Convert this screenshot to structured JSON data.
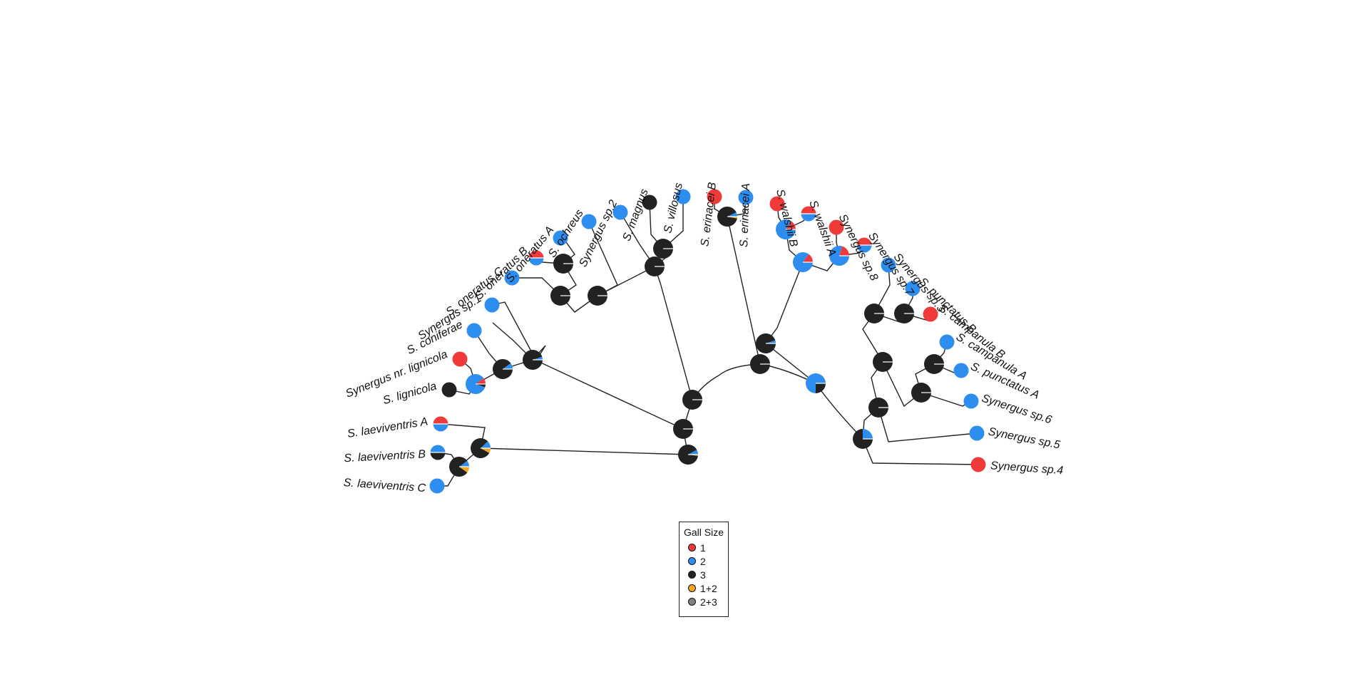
{
  "colors": {
    "1": "#F03A3A",
    "2": "#2E8EF0",
    "3": "#222222",
    "1+2": "#F5A623",
    "2+3": "#808080"
  },
  "legend": {
    "title": "Gall Size",
    "items": [
      {
        "label": "1",
        "color": "#F03A3A"
      },
      {
        "label": "2",
        "color": "#2E8EF0"
      },
      {
        "label": "3",
        "color": "#222222"
      },
      {
        "label": "1+2",
        "color": "#F5A623"
      },
      {
        "label": "2+3",
        "color": "#808080"
      }
    ]
  },
  "tips": [
    {
      "label": "S. laeviventris C",
      "state": "2"
    },
    {
      "label": "S. laeviventris B",
      "states": {
        "2": 0.5,
        "3": 0.5
      }
    },
    {
      "label": "S. laeviventris A",
      "states": {
        "1": 0.5,
        "2": 0.5
      }
    },
    {
      "label": "S. lignicola",
      "state": "3"
    },
    {
      "label": "Synergus nr. lignicola",
      "state": "1"
    },
    {
      "label": "S. coniferae",
      "state": "2"
    },
    {
      "label": "Synergus sp.1",
      "state": "2"
    },
    {
      "label": "S. oneratus C",
      "state": "2"
    },
    {
      "label": "S. oneratus B",
      "states": {
        "1": 0.5,
        "2": 0.5
      }
    },
    {
      "label": "S. oneratus A",
      "state": "2"
    },
    {
      "label": "S. ochreus",
      "state": "2"
    },
    {
      "label": "Synergus sp.2",
      "state": "2"
    },
    {
      "label": "S. magnus",
      "state": "3"
    },
    {
      "label": "S. villosus",
      "state": "2"
    },
    {
      "label": "S. erinacei B",
      "state": "1"
    },
    {
      "label": "S. erinacei A",
      "state": "2"
    },
    {
      "label": "S. walshii B",
      "state": "1"
    },
    {
      "label": "S. walshii A",
      "states": {
        "1": 0.5,
        "2": 0.5
      }
    },
    {
      "label": "Synergus sp.8",
      "state": "1"
    },
    {
      "label": "Synergus sp.7",
      "states": {
        "1": 0.5,
        "2": 0.5
      }
    },
    {
      "label": "Synergus sp.3",
      "state": "2"
    },
    {
      "label": "S. punctatus B",
      "state": "2"
    },
    {
      "label": "S. campanula B",
      "state": "1"
    },
    {
      "label": "S. campanula A",
      "state": "2"
    },
    {
      "label": "S. punctatus A",
      "state": "2"
    },
    {
      "label": "Synergus sp.6",
      "state": "2"
    },
    {
      "label": "Synergus sp.5",
      "state": "2"
    },
    {
      "label": "Synergus sp.4",
      "state": "1"
    }
  ],
  "nodes": [
    {
      "id": "root",
      "states": {
        "3": 0.9,
        "2": 0.08,
        "1+2": 0.02
      }
    },
    {
      "id": "laev-BC",
      "states": {
        "3": 0.8,
        "2": 0.1,
        "1+2": 0.1
      }
    },
    {
      "id": "laev",
      "states": {
        "3": 0.8,
        "2": 0.12,
        "1+2": 0.08
      }
    },
    {
      "id": "lign-pair",
      "states": {
        "2": 0.85,
        "1": 0.1,
        "3": 0.05
      }
    },
    {
      "id": "lign-clade",
      "states": {
        "3": 0.9,
        "2": 0.1
      }
    },
    {
      "id": "sp1-clade",
      "states": {
        "3": 0.95,
        "2": 0.05
      }
    },
    {
      "id": "oner-AB",
      "states": {
        "3": 1.0
      }
    },
    {
      "id": "oner-ABC",
      "states": {
        "3": 1.0
      }
    },
    {
      "id": "ochreus-clade",
      "states": {
        "3": 1.0
      }
    },
    {
      "id": "mag-vil",
      "states": {
        "3": 1.0
      }
    },
    {
      "id": "sp2-clade",
      "states": {
        "3": 1.0
      }
    },
    {
      "id": "mid-A",
      "states": {
        "3": 1.0
      }
    },
    {
      "id": "mid-B",
      "states": {
        "3": 1.0
      }
    },
    {
      "id": "erin",
      "states": {
        "3": 0.9,
        "2": 0.07,
        "1+2": 0.03
      }
    },
    {
      "id": "erin-clade",
      "states": {
        "3": 1.0
      }
    },
    {
      "id": "walshii",
      "states": {
        "2": 0.85,
        "1": 0.15
      }
    },
    {
      "id": "sp7-8",
      "states": {
        "2": 0.8,
        "1": 0.2
      }
    },
    {
      "id": "walshii-sp",
      "states": {
        "2": 0.85,
        "1": 0.15
      }
    },
    {
      "id": "ingroup-B",
      "states": {
        "3": 0.95,
        "2": 0.05
      }
    },
    {
      "id": "right-clade",
      "states": {
        "2": 0.75,
        "3": 0.25
      }
    },
    {
      "id": "camp-pB",
      "states": {
        "3": 1.0
      }
    },
    {
      "id": "sp3-camp",
      "states": {
        "3": 1.0
      }
    },
    {
      "id": "camp-pA",
      "states": {
        "3": 1.0
      }
    },
    {
      "id": "sp6-camp",
      "states": {
        "3": 1.0
      }
    },
    {
      "id": "sp3-sp6",
      "states": {
        "3": 1.0
      }
    },
    {
      "id": "sp5-clade",
      "states": {
        "3": 1.0
      }
    },
    {
      "id": "sp4-clade",
      "states": {
        "3": 0.75,
        "2": 0.25
      }
    }
  ]
}
